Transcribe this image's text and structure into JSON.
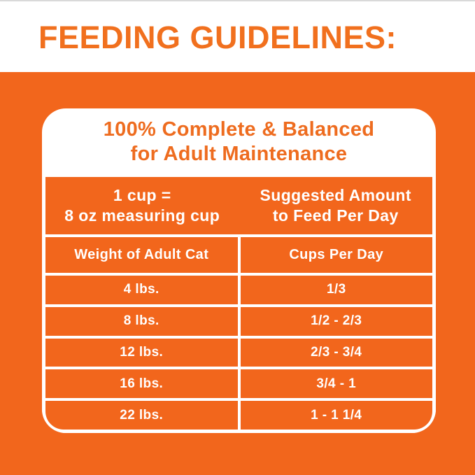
{
  "header": {
    "title": "FEEDING GUIDELINES:"
  },
  "card": {
    "title_line1": "100% Complete & Balanced",
    "title_line2": "for Adult Maintenance",
    "info": {
      "left_line1": "1 cup =",
      "left_line2": "8 oz measuring cup",
      "right_line1": "Suggested Amount",
      "right_line2": "to Feed Per Day"
    },
    "columns": [
      "Weight of Adult Cat",
      "Cups Per Day"
    ],
    "rows": [
      {
        "weight": "4 lbs.",
        "cups": "1/3"
      },
      {
        "weight": "8 lbs.",
        "cups": "1/2 - 2/3"
      },
      {
        "weight": "12 lbs.",
        "cups": "2/3 - 3/4"
      },
      {
        "weight": "16 lbs.",
        "cups": "3/4 - 1"
      },
      {
        "weight": "22 lbs.",
        "cups": "1 - 1 1/4"
      }
    ]
  },
  "colors": {
    "orange_background": "#f2661c",
    "orange_text": "#f1701e",
    "white": "#ffffff",
    "top_hairline": "#d9d9d9"
  }
}
